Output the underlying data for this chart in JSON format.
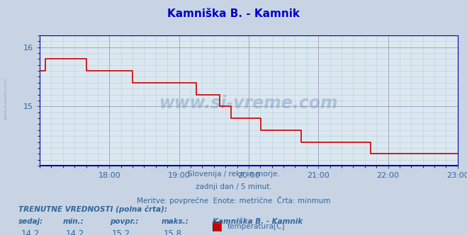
{
  "title": "Kamniška B. - Kamnik",
  "title_color": "#0000cc",
  "bg_color": "#c8d4e4",
  "plot_bg_color": "#dce8f0",
  "line_color": "#cc0000",
  "baseline_color": "#0000bb",
  "axis_spine_color": "#0000aa",
  "text_color": "#336699",
  "minor_grid_color": "#bbccdd",
  "major_grid_color": "#9999bb",
  "watermark": "www.si-vreme.com",
  "xlabel_line1": "Slovenija / reke in morje.",
  "xlabel_line2": "zadnji dan / 5 minut.",
  "xlabel_line3": "Meritve: povprečne  Enote: metrične  Črta: minmum",
  "footer_label": "TRENUTNE VREDNOSTI (polna črta):",
  "col_headers": [
    "sedaj:",
    "min.:",
    "povpr.:",
    "maks.:"
  ],
  "col_values": [
    "14,2",
    "14,2",
    "15,2",
    "15,8"
  ],
  "legend_station": "Kamniška B. - Kamnik",
  "legend_series": "temperatura[C]",
  "legend_color": "#cc0000",
  "ylim_min": 14.0,
  "ylim_max": 16.2,
  "ytick_positions": [
    15.0,
    16.0
  ],
  "ytick_labels": [
    "15",
    "16"
  ],
  "xlim_min": 17.0,
  "xlim_max": 23.0,
  "xtick_positions": [
    18,
    19,
    20,
    21,
    22,
    23
  ],
  "xtick_labels": [
    "18:00",
    "19:00",
    "20:00",
    "21:00",
    "22:00",
    "23:00"
  ],
  "time_points": [
    17.0,
    17.08,
    17.17,
    17.33,
    17.5,
    17.67,
    17.83,
    18.0,
    18.17,
    18.33,
    18.67,
    19.0,
    19.25,
    19.5,
    19.58,
    19.67,
    19.75,
    19.83,
    20.0,
    20.08,
    20.17,
    20.33,
    20.5,
    20.58,
    20.75,
    21.0,
    21.08,
    21.25,
    21.33,
    21.42,
    21.58,
    21.67,
    21.75,
    22.0,
    22.08,
    22.17,
    22.33,
    22.42,
    22.58,
    22.67,
    22.75,
    22.83,
    22.92,
    23.0
  ],
  "temp_values": [
    15.6,
    15.8,
    15.8,
    15.8,
    15.8,
    15.6,
    15.6,
    15.6,
    15.6,
    15.4,
    15.4,
    15.4,
    15.2,
    15.2,
    15.0,
    15.0,
    14.8,
    14.8,
    14.8,
    14.8,
    14.6,
    14.6,
    14.6,
    14.6,
    14.4,
    14.4,
    14.4,
    14.4,
    14.4,
    14.4,
    14.4,
    14.4,
    14.2,
    14.2,
    14.2,
    14.2,
    14.2,
    14.2,
    14.2,
    14.2,
    14.2,
    14.2,
    14.2,
    14.2
  ]
}
